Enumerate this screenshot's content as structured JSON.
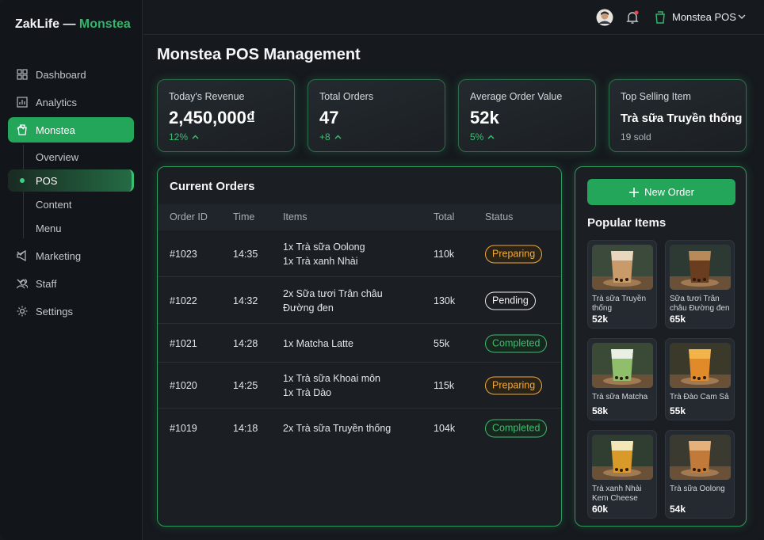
{
  "sidebar": {
    "brand": "ZakLife —",
    "brand_accent": "Monstea",
    "items": [
      "Dashboard",
      "Analytics",
      "Monstea",
      "Marketing",
      "Staff",
      "Settings"
    ],
    "submenu": [
      "Overview",
      "POS",
      "Content",
      "Menu"
    ]
  },
  "topbar": {
    "store": "Monstea POS"
  },
  "header": {
    "title": "Monstea POS Management"
  },
  "stats": [
    {
      "label": "Today's Revenue",
      "value": "2,450,000₫",
      "change": "12%"
    },
    {
      "label": "Total Orders",
      "value": "47",
      "change": "+8"
    },
    {
      "label": "Average Order Value",
      "value": "52k",
      "change": "5%"
    },
    {
      "label": "Top Selling Item",
      "value": "Trà sữa Truyền thống",
      "note": "19 sold"
    }
  ],
  "orders": {
    "title": "Current Orders",
    "columns": [
      "Order ID",
      "Time",
      "Items",
      "Total",
      "Status"
    ],
    "rows": [
      {
        "id": "#1023",
        "time": "14:35",
        "items": [
          "1x Trà sữa Oolong",
          "1x Trà xanh Nhài"
        ],
        "total": "110k",
        "status": "Preparing"
      },
      {
        "id": "#1022",
        "time": "14:32",
        "items": [
          "2x Sữa tươi Trân châu Đường đen"
        ],
        "total": "130k",
        "status": "Pending"
      },
      {
        "id": "#1021",
        "time": "14:28",
        "items": [
          "1x Matcha Latte"
        ],
        "total": "55k",
        "status": "Completed"
      },
      {
        "id": "#1020",
        "time": "14:25",
        "items": [
          "1x Trà sữa Khoai môn",
          "1x Trà Dào"
        ],
        "total": "115k",
        "status": "Preparing"
      },
      {
        "id": "#1019",
        "time": "14:18",
        "items": [
          "2x Trà sữa Truyền thống"
        ],
        "total": "104k",
        "status": "Completed"
      }
    ]
  },
  "panel": {
    "button": "New Order",
    "title": "Popular Items",
    "items": [
      {
        "name": "Trà sữa Truyền thống",
        "price": "52k"
      },
      {
        "name": "Sữa tươi Trân châu Đường đen",
        "price": "65k"
      },
      {
        "name": "Trà sữa Matcha",
        "price": "58k"
      },
      {
        "name": "Trà Đào Cam Sả",
        "price": "55k"
      },
      {
        "name": "Trà xanh Nhài Kem Cheese",
        "price": "60k"
      },
      {
        "name": "Trà sữa Oolong",
        "price": "54k"
      }
    ]
  }
}
